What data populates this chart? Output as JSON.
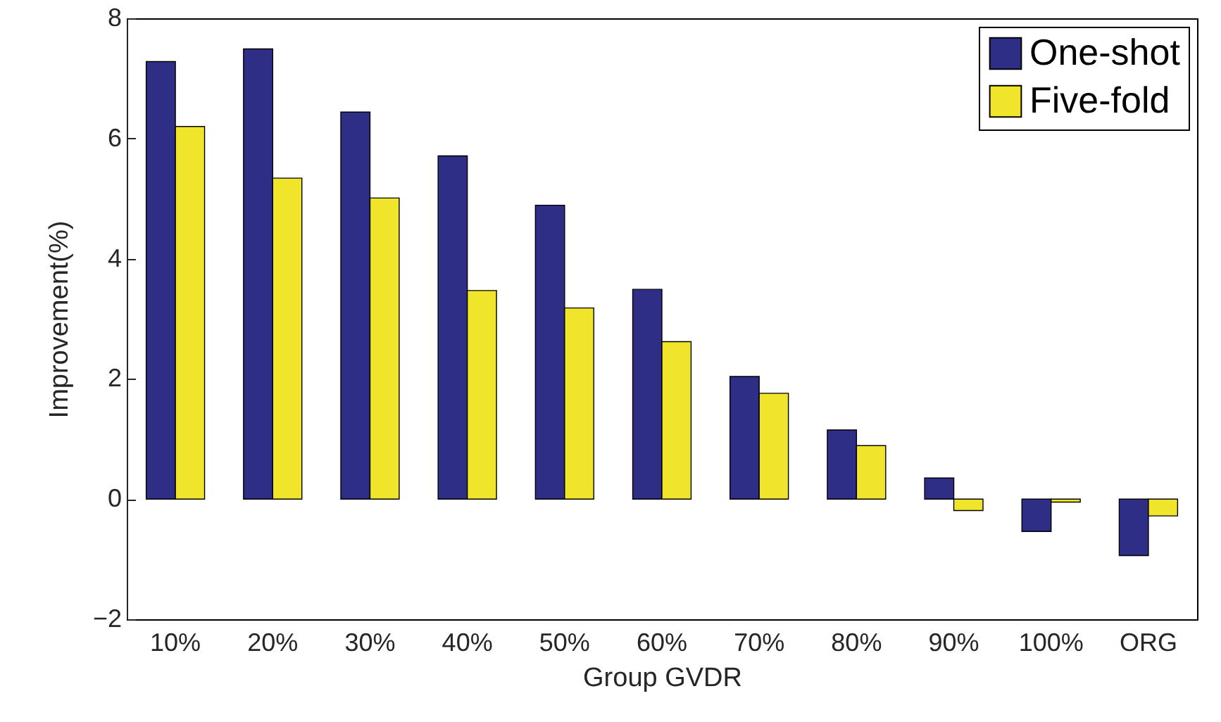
{
  "chart_data": {
    "type": "bar",
    "xlabel": "Group GVDR",
    "ylabel": "Improvement(%)",
    "categories": [
      "10%",
      "20%",
      "30%",
      "40%",
      "50%",
      "60%",
      "70%",
      "80%",
      "90%",
      "100%",
      "ORG"
    ],
    "series": [
      {
        "name": "One-shot",
        "color": "#2e2e86",
        "values": [
          7.28,
          7.49,
          6.44,
          5.71,
          4.89,
          3.49,
          2.04,
          1.15,
          0.35,
          -0.54,
          -0.94
        ]
      },
      {
        "name": "Five-fold",
        "color": "#f0e52a",
        "values": [
          6.2,
          5.34,
          5.01,
          3.47,
          3.18,
          2.62,
          1.76,
          0.89,
          -0.19,
          -0.05,
          -0.28
        ]
      }
    ],
    "ylim": [
      -2,
      8
    ],
    "yticks": [
      -2,
      0,
      2,
      4,
      6,
      8
    ],
    "grid": false,
    "legend": "top right"
  }
}
